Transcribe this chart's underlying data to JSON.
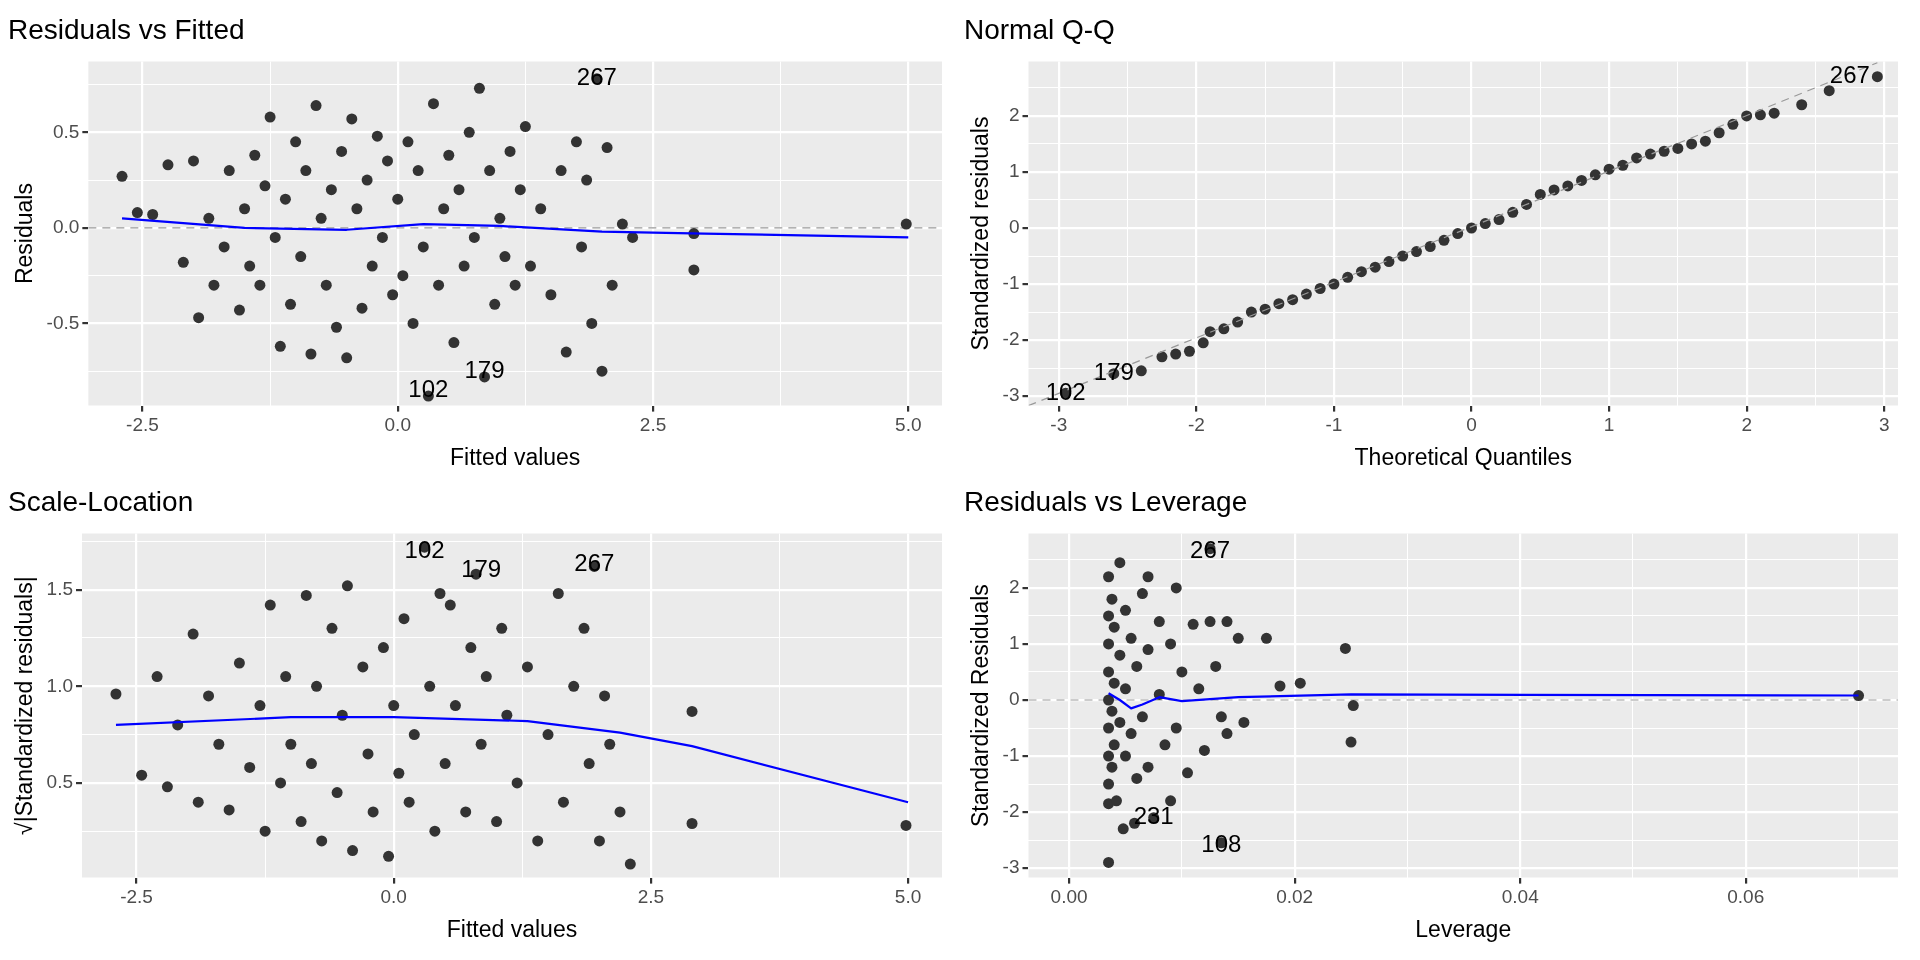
{
  "chart_data": [
    {
      "type": "scatter",
      "title": "Residuals vs Fitted",
      "xlabel": "Fitted values",
      "ylabel": "Residuals",
      "grid": true,
      "legend": false,
      "xlim": [
        -3.03,
        5.33
      ],
      "ylim": [
        -0.93,
        0.87
      ],
      "xticks": [
        {
          "value": -2.5,
          "label": "-2.5"
        },
        {
          "value": -1.25,
          "label": null
        },
        {
          "value": 0,
          "label": "0.0"
        },
        {
          "value": 1.25,
          "label": null
        },
        {
          "value": 2.5,
          "label": "2.5"
        },
        {
          "value": 3.75,
          "label": null
        },
        {
          "value": 5,
          "label": "5.0"
        }
      ],
      "yticks": [
        {
          "value": -0.75,
          "label": null
        },
        {
          "value": -0.5,
          "label": "-0.5"
        },
        {
          "value": -0.25,
          "label": null
        },
        {
          "value": 0,
          "label": "0.0"
        },
        {
          "value": 0.25,
          "label": null
        },
        {
          "value": 0.5,
          "label": "0.5"
        },
        {
          "value": 0.75,
          "label": null
        }
      ],
      "ref_lines": [
        {
          "axis": "y",
          "value": 0,
          "color": "#999999",
          "line_style": "dashed"
        }
      ],
      "annotations": [
        {
          "text": "267",
          "x": 1.95,
          "y": 0.78
        },
        {
          "text": "179",
          "x": 0.85,
          "y": -0.75
        },
        {
          "text": "102",
          "x": 0.3,
          "y": -0.85
        }
      ],
      "series": [
        {
          "type": "scatter",
          "marker": "circle",
          "color": "#333333",
          "x": [
            -2.7,
            -2.55,
            -2.4,
            -2.25,
            -2.1,
            -2.0,
            -1.95,
            -1.85,
            -1.8,
            -1.7,
            -1.65,
            -1.55,
            -1.5,
            -1.45,
            -1.4,
            -1.35,
            -1.3,
            -1.25,
            -1.2,
            -1.15,
            -1.1,
            -1.05,
            -1.0,
            -0.95,
            -0.9,
            -0.85,
            -0.8,
            -0.75,
            -0.7,
            -0.65,
            -0.6,
            -0.55,
            -0.5,
            -0.45,
            -0.4,
            -0.35,
            -0.3,
            -0.25,
            -0.2,
            -0.15,
            -0.1,
            -0.05,
            0.0,
            0.05,
            0.1,
            0.15,
            0.2,
            0.25,
            0.3,
            0.35,
            0.4,
            0.45,
            0.5,
            0.55,
            0.6,
            0.65,
            0.7,
            0.75,
            0.8,
            0.85,
            0.9,
            0.95,
            1.0,
            1.05,
            1.1,
            1.15,
            1.2,
            1.25,
            1.3,
            1.4,
            1.5,
            1.6,
            1.65,
            1.75,
            1.8,
            1.85,
            1.9,
            1.95,
            2.0,
            2.05,
            2.1,
            2.2,
            2.3,
            2.9,
            2.9,
            4.98
          ],
          "values": [
            0.27,
            0.08,
            0.07,
            0.33,
            -0.18,
            0.35,
            -0.47,
            0.05,
            -0.3,
            -0.1,
            0.3,
            -0.43,
            0.1,
            -0.2,
            0.38,
            -0.3,
            0.22,
            0.58,
            -0.05,
            -0.62,
            0.15,
            -0.4,
            0.45,
            -0.15,
            0.3,
            -0.66,
            0.64,
            0.05,
            -0.3,
            0.2,
            -0.52,
            0.4,
            -0.68,
            0.57,
            0.1,
            -0.42,
            0.25,
            -0.2,
            0.48,
            -0.05,
            0.35,
            -0.35,
            0.15,
            -0.25,
            0.45,
            -0.5,
            0.3,
            -0.1,
            -0.88,
            0.65,
            -0.3,
            0.1,
            0.38,
            -0.6,
            0.2,
            -0.2,
            0.5,
            -0.05,
            0.73,
            -0.78,
            0.3,
            -0.4,
            0.05,
            -0.15,
            0.4,
            -0.3,
            0.2,
            0.53,
            -0.2,
            0.1,
            -0.35,
            0.3,
            -0.65,
            0.45,
            -0.1,
            0.25,
            -0.5,
            0.78,
            -0.75,
            0.42,
            -0.3,
            0.02,
            -0.05,
            -0.03,
            -0.22,
            0.02
          ]
        },
        {
          "type": "line",
          "color": "#0000ff",
          "x": [
            -2.7,
            -1.5,
            -0.5,
            0.25,
            1.0,
            2.0,
            3.0,
            5.0
          ],
          "values": [
            0.05,
            0.0,
            -0.01,
            0.02,
            0.01,
            -0.02,
            -0.03,
            -0.05
          ]
        }
      ]
    },
    {
      "type": "scatter",
      "title": "Normal Q-Q",
      "xlabel": "Theoretical Quantiles",
      "ylabel": "Standardized residuals",
      "grid": true,
      "legend": false,
      "xlim": [
        -3.22,
        3.1
      ],
      "ylim": [
        -3.17,
        2.97
      ],
      "xticks": [
        -3,
        {
          "value": -2.5,
          "label": null
        },
        -2,
        {
          "value": -1.5,
          "label": null
        },
        -1,
        {
          "value": -0.5,
          "label": null
        },
        0,
        {
          "value": 0.5,
          "label": null
        },
        1,
        {
          "value": 1.5,
          "label": null
        },
        2,
        {
          "value": 2.5,
          "label": null
        },
        3
      ],
      "yticks": [
        -3,
        {
          "value": -2.5,
          "label": null
        },
        -2,
        {
          "value": -1.5,
          "label": null
        },
        -1,
        {
          "value": -0.5,
          "label": null
        },
        0,
        {
          "value": 0.5,
          "label": null
        },
        1,
        {
          "value": 1.5,
          "label": null
        },
        2,
        {
          "value": 2.5,
          "label": null
        }
      ],
      "annotations": [
        {
          "text": "267",
          "x": 2.75,
          "y": 2.7
        },
        {
          "text": "179",
          "x": -2.6,
          "y": -2.6
        },
        {
          "text": "102",
          "x": -2.95,
          "y": -2.95
        }
      ],
      "series": [
        {
          "type": "line",
          "color": "#999999",
          "line_style": "dashed",
          "x": [
            -3.22,
            2.95
          ],
          "values": [
            -3.17,
            2.95
          ]
        },
        {
          "type": "scatter",
          "marker": "circle",
          "color": "#333333",
          "x": [
            -2.95,
            -2.6,
            -2.4,
            -2.25,
            -2.15,
            -2.05,
            -1.95,
            -1.9,
            -1.8,
            -1.7,
            -1.6,
            -1.5,
            -1.4,
            -1.3,
            -1.2,
            -1.1,
            -1.0,
            -0.9,
            -0.8,
            -0.7,
            -0.6,
            -0.5,
            -0.4,
            -0.3,
            -0.2,
            -0.1,
            0.0,
            0.1,
            0.2,
            0.3,
            0.4,
            0.5,
            0.6,
            0.7,
            0.8,
            0.9,
            1.0,
            1.1,
            1.2,
            1.3,
            1.4,
            1.5,
            1.6,
            1.7,
            1.8,
            1.9,
            2.0,
            2.1,
            2.2,
            2.4,
            2.6,
            2.95
          ],
          "values": [
            -2.95,
            -2.6,
            -2.55,
            -2.3,
            -2.25,
            -2.2,
            -2.05,
            -1.85,
            -1.8,
            -1.68,
            -1.5,
            -1.45,
            -1.35,
            -1.28,
            -1.18,
            -1.08,
            -1.0,
            -0.88,
            -0.78,
            -0.7,
            -0.6,
            -0.5,
            -0.42,
            -0.33,
            -0.22,
            -0.1,
            0.0,
            0.08,
            0.15,
            0.28,
            0.42,
            0.6,
            0.68,
            0.75,
            0.85,
            0.95,
            1.05,
            1.12,
            1.25,
            1.32,
            1.37,
            1.42,
            1.5,
            1.55,
            1.7,
            1.85,
            2.0,
            2.02,
            2.05,
            2.2,
            2.45,
            2.7
          ]
        }
      ]
    },
    {
      "type": "scatter",
      "title": "Scale-Location",
      "xlabel": "Fitted values",
      "ylabel": "√|Standardized residuals|",
      "grid": true,
      "legend": false,
      "xlim": [
        -3.03,
        5.33
      ],
      "ylim": [
        0.01,
        1.79
      ],
      "xticks": [
        {
          "value": -2.5,
          "label": "-2.5"
        },
        {
          "value": -1.25,
          "label": null
        },
        {
          "value": 0,
          "label": "0.0"
        },
        {
          "value": 1.25,
          "label": null
        },
        {
          "value": 2.5,
          "label": "2.5"
        },
        {
          "value": 3.75,
          "label": null
        },
        {
          "value": 5,
          "label": "5.0"
        }
      ],
      "yticks": [
        {
          "value": 0.25,
          "label": null
        },
        0.5,
        {
          "value": 0.75,
          "label": null
        },
        {
          "value": 1,
          "label": "1.0"
        },
        {
          "value": 1.25,
          "label": null
        },
        1.5,
        {
          "value": 1.75,
          "label": null
        }
      ],
      "annotations": [
        {
          "text": "102",
          "x": 0.3,
          "y": 1.7
        },
        {
          "text": "179",
          "x": 0.85,
          "y": 1.6
        },
        {
          "text": "267",
          "x": 1.95,
          "y": 1.63
        }
      ],
      "series": [
        {
          "type": "scatter",
          "marker": "circle",
          "color": "#333333",
          "x": [
            -2.7,
            -2.45,
            -2.3,
            -2.2,
            -2.1,
            -1.95,
            -1.9,
            -1.8,
            -1.7,
            -1.6,
            -1.5,
            -1.4,
            -1.3,
            -1.25,
            -1.2,
            -1.1,
            -1.05,
            -1.0,
            -0.9,
            -0.85,
            -0.8,
            -0.75,
            -0.7,
            -0.6,
            -0.55,
            -0.5,
            -0.45,
            -0.4,
            -0.3,
            -0.25,
            -0.2,
            -0.1,
            -0.05,
            0.0,
            0.05,
            0.1,
            0.15,
            0.2,
            0.3,
            0.35,
            0.4,
            0.45,
            0.5,
            0.55,
            0.6,
            0.7,
            0.75,
            0.8,
            0.85,
            0.9,
            1.0,
            1.05,
            1.1,
            1.2,
            1.3,
            1.4,
            1.5,
            1.6,
            1.65,
            1.75,
            1.85,
            1.9,
            1.95,
            2.0,
            2.05,
            2.1,
            2.2,
            2.3,
            2.9,
            2.9,
            4.98
          ],
          "values": [
            0.96,
            0.54,
            1.05,
            0.48,
            0.8,
            1.27,
            0.4,
            0.95,
            0.7,
            0.36,
            1.12,
            0.58,
            0.9,
            0.25,
            1.42,
            0.5,
            1.05,
            0.7,
            0.3,
            1.47,
            0.6,
            1.0,
            0.2,
            1.3,
            0.45,
            0.85,
            1.52,
            0.15,
            1.1,
            0.65,
            0.35,
            1.2,
            0.12,
            0.9,
            0.55,
            1.35,
            0.4,
            0.75,
            1.72,
            1.0,
            0.25,
            1.48,
            0.6,
            1.42,
            0.9,
            0.35,
            1.2,
            1.58,
            0.7,
            1.05,
            0.3,
            1.3,
            0.85,
            0.5,
            1.1,
            0.2,
            0.75,
            1.48,
            0.4,
            1.0,
            1.3,
            0.6,
            1.62,
            0.2,
            0.95,
            0.7,
            0.35,
            0.08,
            0.87,
            0.29,
            0.28
          ]
        },
        {
          "type": "line",
          "color": "#0000ff",
          "x": [
            -2.7,
            -1.0,
            0.0,
            1.3,
            2.2,
            2.9,
            5.0
          ],
          "values": [
            0.8,
            0.84,
            0.84,
            0.82,
            0.76,
            0.69,
            0.4
          ]
        }
      ]
    },
    {
      "type": "scatter",
      "title": "Residuals vs Leverage",
      "xlabel": "Leverage",
      "ylabel": "Standardized Residuals",
      "grid": true,
      "legend": false,
      "xlim": [
        -0.0036,
        0.0735
      ],
      "ylim": [
        -3.17,
        2.97
      ],
      "xticks": [
        {
          "value": 0,
          "label": "0.00"
        },
        {
          "value": 0.01,
          "label": null
        },
        {
          "value": 0.02,
          "label": "0.02"
        },
        {
          "value": 0.03,
          "label": null
        },
        {
          "value": 0.04,
          "label": "0.04"
        },
        {
          "value": 0.05,
          "label": null
        },
        {
          "value": 0.06,
          "label": "0.06"
        },
        {
          "value": 0.07,
          "label": null
        }
      ],
      "yticks": [
        -3,
        {
          "value": -2.5,
          "label": null
        },
        -2,
        {
          "value": -1.5,
          "label": null
        },
        -1,
        {
          "value": -0.5,
          "label": null
        },
        0,
        {
          "value": 0.5,
          "label": null
        },
        1,
        {
          "value": 1.5,
          "label": null
        },
        2,
        {
          "value": 2.5,
          "label": null
        }
      ],
      "ref_lines": [
        {
          "axis": "y",
          "value": 0,
          "color": "#999999",
          "line_style": "dashed"
        }
      ],
      "annotations": [
        {
          "text": "267",
          "x": 0.0125,
          "y": 2.65
        },
        {
          "text": "231",
          "x": 0.0075,
          "y": -2.1
        },
        {
          "text": "108",
          "x": 0.0135,
          "y": -2.6
        }
      ],
      "series": [
        {
          "type": "scatter",
          "marker": "circle",
          "color": "#333333",
          "x": [
            0.0035,
            0.0035,
            0.0035,
            0.0035,
            0.0035,
            0.0035,
            0.0035,
            0.0035,
            0.0035,
            0.0035,
            0.0038,
            0.0038,
            0.0038,
            0.004,
            0.004,
            0.004,
            0.0042,
            0.0045,
            0.0045,
            0.0045,
            0.0048,
            0.005,
            0.005,
            0.005,
            0.0055,
            0.0055,
            0.0058,
            0.006,
            0.006,
            0.0065,
            0.0065,
            0.007,
            0.007,
            0.007,
            0.0075,
            0.008,
            0.008,
            0.0085,
            0.009,
            0.009,
            0.0095,
            0.0095,
            0.01,
            0.0105,
            0.011,
            0.0115,
            0.0125,
            0.012,
            0.0125,
            0.0135,
            0.013,
            0.0135,
            0.014,
            0.014,
            0.015,
            0.0155,
            0.0175,
            0.0187,
            0.0205,
            0.0245,
            0.025,
            0.0252,
            0.07
          ],
          "values": [
            2.2,
            1.5,
            1.0,
            0.5,
            0.0,
            -0.5,
            -1.0,
            -1.5,
            -1.85,
            -2.9,
            1.8,
            -0.2,
            -1.2,
            1.3,
            0.3,
            -0.8,
            -1.8,
            2.45,
            0.8,
            -0.4,
            -2.3,
            1.6,
            0.2,
            -1.0,
            1.1,
            -0.6,
            -2.2,
            0.6,
            -1.4,
            1.9,
            -0.3,
            2.2,
            0.9,
            -1.2,
            -2.1,
            1.4,
            0.1,
            -0.8,
            -1.8,
            1.0,
            2.0,
            -0.5,
            0.5,
            -1.3,
            1.35,
            0.2,
            2.7,
            -0.9,
            1.4,
            -2.55,
            0.6,
            -0.3,
            1.4,
            -0.6,
            1.1,
            -0.4,
            1.1,
            0.25,
            0.3,
            0.92,
            -0.75,
            -0.1,
            0.08
          ]
        },
        {
          "type": "line",
          "color": "#0000ff",
          "x": [
            0.0035,
            0.0045,
            0.0055,
            0.0065,
            0.008,
            0.01,
            0.015,
            0.025,
            0.07
          ],
          "values": [
            0.12,
            0.0,
            -0.15,
            -0.08,
            0.05,
            -0.02,
            0.05,
            0.1,
            0.08
          ]
        }
      ]
    }
  ]
}
